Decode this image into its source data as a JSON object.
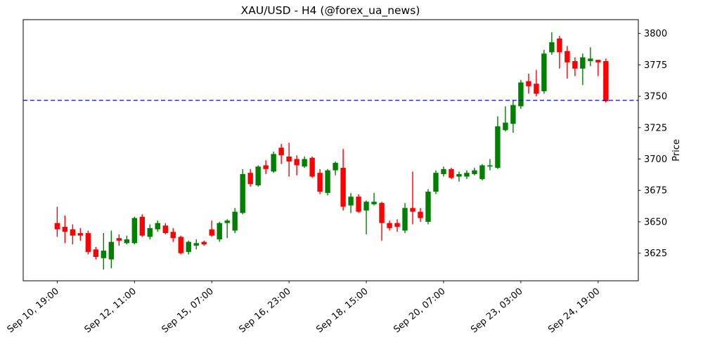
{
  "title": "XAU/USD - H4 (@forex_ua_news)",
  "chart_data": {
    "type": "candlestick",
    "title": "XAU/USD - H4 (@forex_ua_news)",
    "symbol": "XAU/USD",
    "timeframe": "H4",
    "source_handle": "@forex_ua_news",
    "ylabel": "Price",
    "ylabel_side": "right",
    "grid": false,
    "background": "#ffffff",
    "up_color": "#008000",
    "down_color": "#ff0000",
    "ylim": [
      3603,
      3811
    ],
    "xlim_index": [
      -4.4,
      75.2
    ],
    "yticks": [
      3625,
      3650,
      3675,
      3700,
      3725,
      3750,
      3775,
      3800
    ],
    "xtick_indices": [
      0,
      10,
      20,
      30,
      40,
      50,
      60,
      70
    ],
    "xtick_labels": [
      "Sep 10, 19:00",
      "Sep 12, 11:00",
      "Sep 15, 07:00",
      "Sep 16, 23:00",
      "Sep 18, 15:00",
      "Sep 20, 07:00",
      "Sep 23, 03:00",
      "Sep 24, 19:00"
    ],
    "hline": {
      "price": 3746.7,
      "color": "#0000ff",
      "style": "dashed"
    },
    "candles_format": [
      "open",
      "high",
      "low",
      "close"
    ],
    "candles": [
      [
        3649,
        3662,
        3638,
        3644
      ],
      [
        3646,
        3655,
        3633,
        3642
      ],
      [
        3644,
        3648,
        3632,
        3639
      ],
      [
        3641,
        3645,
        3635,
        3639
      ],
      [
        3641,
        3643,
        3624,
        3626
      ],
      [
        3628,
        3630,
        3620,
        3622
      ],
      [
        3621,
        3641,
        3612,
        3627
      ],
      [
        3620,
        3643,
        3613,
        3634
      ],
      [
        3637,
        3640,
        3631,
        3635
      ],
      [
        3633,
        3639,
        3632,
        3636
      ],
      [
        3633,
        3654,
        3632,
        3653
      ],
      [
        3654,
        3656,
        3638,
        3639
      ],
      [
        3638,
        3648,
        3636,
        3645
      ],
      [
        3644,
        3651,
        3642,
        3649
      ],
      [
        3647,
        3649,
        3640,
        3641
      ],
      [
        3642,
        3645,
        3634,
        3637
      ],
      [
        3638,
        3639,
        3624,
        3625
      ],
      [
        3626,
        3635,
        3624,
        3634
      ],
      [
        3631,
        3636,
        3628,
        3633
      ],
      [
        3634,
        3635,
        3631,
        3632
      ],
      [
        3644,
        3651,
        3638,
        3639
      ],
      [
        3636,
        3650,
        3634,
        3649
      ],
      [
        3649,
        3652,
        3637,
        3651
      ],
      [
        3643,
        3661,
        3641,
        3658
      ],
      [
        3657,
        3692,
        3656,
        3688
      ],
      [
        3689,
        3692,
        3678,
        3680
      ],
      [
        3679,
        3695,
        3678,
        3694
      ],
      [
        3695,
        3699,
        3688,
        3692
      ],
      [
        3690,
        3706,
        3689,
        3704
      ],
      [
        3709,
        3712,
        3696,
        3703
      ],
      [
        3702,
        3713,
        3686,
        3698
      ],
      [
        3700,
        3703,
        3687,
        3695
      ],
      [
        3694,
        3702,
        3693,
        3700
      ],
      [
        3701,
        3702,
        3685,
        3686
      ],
      [
        3689,
        3692,
        3672,
        3674
      ],
      [
        3673,
        3692,
        3671,
        3691
      ],
      [
        3691,
        3698,
        3687,
        3697
      ],
      [
        3693,
        3708,
        3659,
        3662
      ],
      [
        3663,
        3673,
        3657,
        3670
      ],
      [
        3670,
        3672,
        3657,
        3658
      ],
      [
        3659,
        3667,
        3640,
        3666
      ],
      [
        3664,
        3673,
        3663,
        3666
      ],
      [
        3665,
        3666,
        3635,
        3649
      ],
      [
        3649,
        3651,
        3643,
        3645
      ],
      [
        3649,
        3652,
        3642,
        3646
      ],
      [
        3643,
        3665,
        3641,
        3661
      ],
      [
        3661,
        3690,
        3648,
        3658
      ],
      [
        3658,
        3661,
        3650,
        3653
      ],
      [
        3650,
        3676,
        3648,
        3674
      ],
      [
        3674,
        3691,
        3672,
        3689
      ],
      [
        3688,
        3694,
        3686,
        3692
      ],
      [
        3692,
        3693,
        3684,
        3685
      ],
      [
        3686,
        3690,
        3682,
        3688
      ],
      [
        3686,
        3691,
        3684,
        3689
      ],
      [
        3688,
        3693,
        3687,
        3691
      ],
      [
        3684,
        3696,
        3683,
        3695
      ],
      [
        3694,
        3700,
        3691,
        3695
      ],
      [
        3693,
        3734,
        3692,
        3726
      ],
      [
        3723,
        3742,
        3722,
        3729
      ],
      [
        3728,
        3747,
        3721,
        3743
      ],
      [
        3742,
        3763,
        3740,
        3761
      ],
      [
        3762,
        3768,
        3752,
        3758
      ],
      [
        3760,
        3771,
        3750,
        3752
      ],
      [
        3754,
        3787,
        3752,
        3784
      ],
      [
        3785,
        3801,
        3783,
        3793
      ],
      [
        3796,
        3798,
        3772,
        3785
      ],
      [
        3786,
        3790,
        3764,
        3777
      ],
      [
        3778,
        3781,
        3766,
        3772
      ],
      [
        3772,
        3784,
        3759,
        3781
      ],
      [
        3778,
        3789,
        3774,
        3780
      ],
      [
        3779,
        3779,
        3766,
        3777
      ],
      [
        3778,
        3780,
        3745,
        3746
      ]
    ]
  }
}
